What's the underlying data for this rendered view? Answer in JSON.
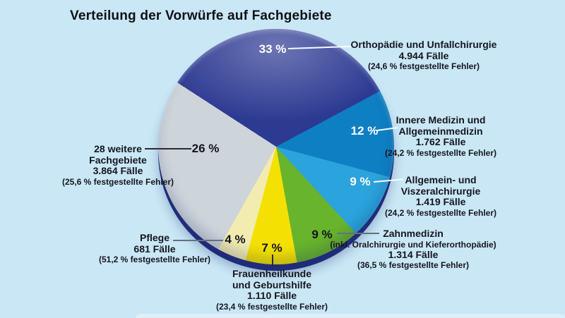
{
  "page": {
    "background": "#c9e7f5",
    "title": "Verteilung der Vorwürfe auf Fachgebiete"
  },
  "chart_data": {
    "type": "pie",
    "title": "Verteilung der Vorwürfe auf Fachgebiete",
    "start_angle_deg": -57,
    "legend_position": "callout-labels-around-pie",
    "slices": [
      {
        "percent": 33,
        "percent_label": "33 %",
        "color": "#2d3a92",
        "name_lines": [
          "Orthopädie und Unfallchirurgie"
        ],
        "cases": "4.944 Fälle",
        "errors": "(24,6 % festgestellte Fehler)"
      },
      {
        "percent": 12,
        "percent_label": "12 %",
        "color": "#0f7fc3",
        "name_lines": [
          "Innere Medizin und",
          "Allgemeinmedizin"
        ],
        "cases": "1.762 Fälle",
        "errors": "(24,2 % festgestellte Fehler)"
      },
      {
        "percent": 9,
        "percent_label": "9 %",
        "color": "#2ba3dc",
        "name_lines": [
          "Allgemein- und",
          "Viszeralchirurgie"
        ],
        "cases": "1.419 Fälle",
        "errors": "(24,2 % festgestellte Fehler)"
      },
      {
        "percent": 9,
        "percent_label": "9 %",
        "color": "#68b42c",
        "name_lines": [
          "Zahnmedizin"
        ],
        "note": "(inkl. Oralchirurgie und Kieferorthopädie)",
        "cases": "1.314 Fälle",
        "errors": "(36,5 % festgestellte Fehler)"
      },
      {
        "percent": 7,
        "percent_label": "7 %",
        "color": "#f4e103",
        "name_lines": [
          "Frauenheilkunde",
          "und Geburtshilfe"
        ],
        "cases": "1.110 Fälle",
        "errors": "(23,4 % festgestellte Fehler)"
      },
      {
        "percent": 4,
        "percent_label": "4 %",
        "color": "#f2ecb0",
        "name_lines": [
          "Pflege"
        ],
        "cases": "681 Fälle",
        "errors": "(51,2 % festgestellte Fehler)"
      },
      {
        "percent": 26,
        "percent_label": "26 %",
        "color": "#cdd4da",
        "name_lines": [
          "28 weitere",
          "Fachgebiete"
        ],
        "cases": "3.864 Fälle",
        "errors": "(25,6 % festgestellte Fehler)"
      }
    ]
  }
}
